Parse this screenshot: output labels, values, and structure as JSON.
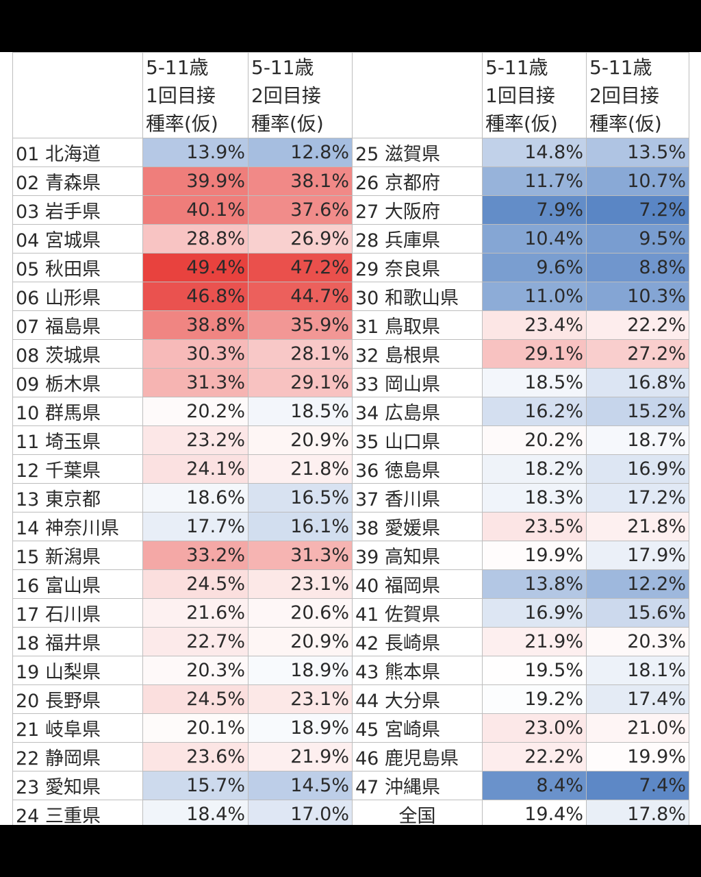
{
  "headers": {
    "left_blank": "",
    "col1": [
      "5-11歳",
      "1回目接",
      "種率(仮)"
    ],
    "col2": [
      "5-11歳",
      "2回目接",
      "種率(仮)"
    ],
    "middle_blank": "",
    "col3": [
      "5-11歳",
      "1回目接",
      "種率(仮)"
    ],
    "col4": [
      "5-11歳",
      "2回目接",
      "種率(仮)"
    ]
  },
  "colors": {
    "high": "#e8423e",
    "low": "#5a86c5",
    "mid": "#ffffff"
  },
  "rows": [
    {
      "l": {
        "name": "01 北海道",
        "v1": "13.9%",
        "v2": "12.8%"
      },
      "r": {
        "name": "25 滋賀県",
        "v1": "14.8%",
        "v2": "13.5%"
      }
    },
    {
      "l": {
        "name": "02 青森県",
        "v1": "39.9%",
        "v2": "38.1%"
      },
      "r": {
        "name": "26 京都府",
        "v1": "11.7%",
        "v2": "10.7%"
      }
    },
    {
      "l": {
        "name": "03 岩手県",
        "v1": "40.1%",
        "v2": "37.6%"
      },
      "r": {
        "name": "27 大阪府",
        "v1": "7.9%",
        "v2": "7.2%"
      }
    },
    {
      "l": {
        "name": "04 宮城県",
        "v1": "28.8%",
        "v2": "26.9%"
      },
      "r": {
        "name": "28 兵庫県",
        "v1": "10.4%",
        "v2": "9.5%"
      }
    },
    {
      "l": {
        "name": "05 秋田県",
        "v1": "49.4%",
        "v2": "47.2%"
      },
      "r": {
        "name": "29 奈良県",
        "v1": "9.6%",
        "v2": "8.8%"
      }
    },
    {
      "l": {
        "name": "06 山形県",
        "v1": "46.8%",
        "v2": "44.7%"
      },
      "r": {
        "name": "30 和歌山県",
        "v1": "11.0%",
        "v2": "10.3%"
      }
    },
    {
      "l": {
        "name": "07 福島県",
        "v1": "38.8%",
        "v2": "35.9%"
      },
      "r": {
        "name": "31 鳥取県",
        "v1": "23.4%",
        "v2": "22.2%"
      }
    },
    {
      "l": {
        "name": "08 茨城県",
        "v1": "30.3%",
        "v2": "28.1%"
      },
      "r": {
        "name": "32 島根県",
        "v1": "29.1%",
        "v2": "27.2%"
      }
    },
    {
      "l": {
        "name": "09 栃木県",
        "v1": "31.3%",
        "v2": "29.1%"
      },
      "r": {
        "name": "33 岡山県",
        "v1": "18.5%",
        "v2": "16.8%"
      }
    },
    {
      "l": {
        "name": "10 群馬県",
        "v1": "20.2%",
        "v2": "18.5%"
      },
      "r": {
        "name": "34 広島県",
        "v1": "16.2%",
        "v2": "15.2%"
      }
    },
    {
      "l": {
        "name": "11 埼玉県",
        "v1": "23.2%",
        "v2": "20.9%"
      },
      "r": {
        "name": "35 山口県",
        "v1": "20.2%",
        "v2": "18.7%"
      }
    },
    {
      "l": {
        "name": "12 千葉県",
        "v1": "24.1%",
        "v2": "21.8%"
      },
      "r": {
        "name": "36 徳島県",
        "v1": "18.2%",
        "v2": "16.9%"
      }
    },
    {
      "l": {
        "name": "13 東京都",
        "v1": "18.6%",
        "v2": "16.5%"
      },
      "r": {
        "name": "37 香川県",
        "v1": "18.3%",
        "v2": "17.2%"
      }
    },
    {
      "l": {
        "name": "14 神奈川県",
        "v1": "17.7%",
        "v2": "16.1%"
      },
      "r": {
        "name": "38 愛媛県",
        "v1": "23.5%",
        "v2": "21.8%"
      }
    },
    {
      "l": {
        "name": "15 新潟県",
        "v1": "33.2%",
        "v2": "31.3%"
      },
      "r": {
        "name": "39 高知県",
        "v1": "19.9%",
        "v2": "17.9%"
      }
    },
    {
      "l": {
        "name": "16 富山県",
        "v1": "24.5%",
        "v2": "23.1%"
      },
      "r": {
        "name": "40 福岡県",
        "v1": "13.8%",
        "v2": "12.2%"
      }
    },
    {
      "l": {
        "name": "17 石川県",
        "v1": "21.6%",
        "v2": "20.6%"
      },
      "r": {
        "name": "41 佐賀県",
        "v1": "16.9%",
        "v2": "15.6%"
      }
    },
    {
      "l": {
        "name": "18 福井県",
        "v1": "22.7%",
        "v2": "20.9%"
      },
      "r": {
        "name": "42 長崎県",
        "v1": "21.9%",
        "v2": "20.3%"
      }
    },
    {
      "l": {
        "name": "19 山梨県",
        "v1": "20.3%",
        "v2": "18.9%"
      },
      "r": {
        "name": "43 熊本県",
        "v1": "19.5%",
        "v2": "18.1%"
      }
    },
    {
      "l": {
        "name": "20 長野県",
        "v1": "24.5%",
        "v2": "23.1%"
      },
      "r": {
        "name": "44 大分県",
        "v1": "19.2%",
        "v2": "17.4%"
      }
    },
    {
      "l": {
        "name": "21 岐阜県",
        "v1": "20.1%",
        "v2": "18.9%"
      },
      "r": {
        "name": "45 宮崎県",
        "v1": "23.0%",
        "v2": "21.0%"
      }
    },
    {
      "l": {
        "name": "22 静岡県",
        "v1": "23.6%",
        "v2": "21.9%"
      },
      "r": {
        "name": "46 鹿児島県",
        "v1": "22.2%",
        "v2": "19.9%"
      }
    },
    {
      "l": {
        "name": "23 愛知県",
        "v1": "15.7%",
        "v2": "14.5%"
      },
      "r": {
        "name": "47 沖縄県",
        "v1": "8.4%",
        "v2": "7.4%"
      }
    },
    {
      "l": {
        "name": "24 三重県",
        "v1": "18.4%",
        "v2": "17.0%"
      },
      "r": {
        "name": "全国",
        "v1": "19.4%",
        "v2": "17.8%",
        "center": true
      }
    }
  ]
}
